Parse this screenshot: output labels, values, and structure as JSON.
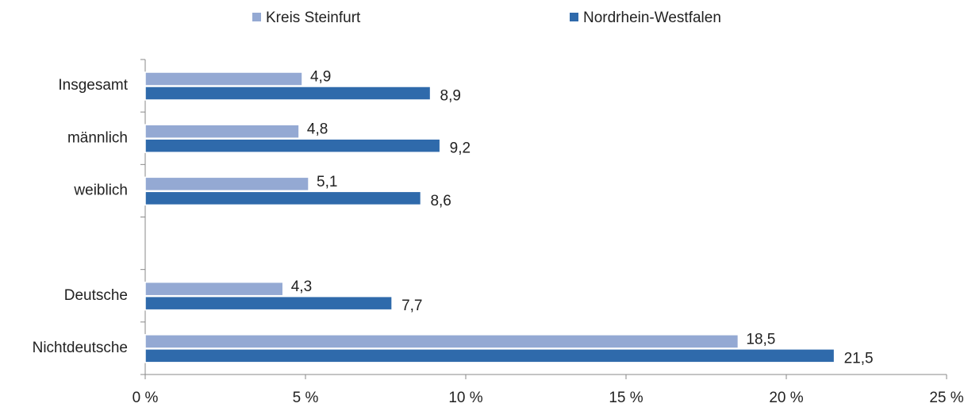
{
  "chart_data": {
    "type": "bar",
    "orientation": "horizontal",
    "categories": [
      "Insgesamt",
      "männlich",
      "weiblich",
      null,
      "Deutsche",
      "Nichtdeutsche"
    ],
    "series": [
      {
        "name": "Kreis Steinfurt",
        "color": "#94a9d3",
        "values": [
          4.9,
          4.8,
          5.1,
          null,
          4.3,
          18.5
        ],
        "value_labels": [
          "4,9",
          "4,8",
          "5,1",
          null,
          "4,3",
          "18,5"
        ]
      },
      {
        "name": "Nordrhein-Westfalen",
        "color": "#2f6aab",
        "values": [
          8.9,
          9.2,
          8.6,
          null,
          7.7,
          21.5
        ],
        "value_labels": [
          "8,9",
          "9,2",
          "8,6",
          null,
          "7,7",
          "21,5"
        ]
      }
    ],
    "xlim": [
      0,
      25
    ],
    "xticks": [
      {
        "value": 0,
        "label": "0 %"
      },
      {
        "value": 5,
        "label": "5 %"
      },
      {
        "value": 10,
        "label": "10 %"
      },
      {
        "value": 15,
        "label": "15 %"
      },
      {
        "value": 20,
        "label": "20 %"
      },
      {
        "value": 25,
        "label": "25 %"
      }
    ],
    "legend": "top"
  }
}
